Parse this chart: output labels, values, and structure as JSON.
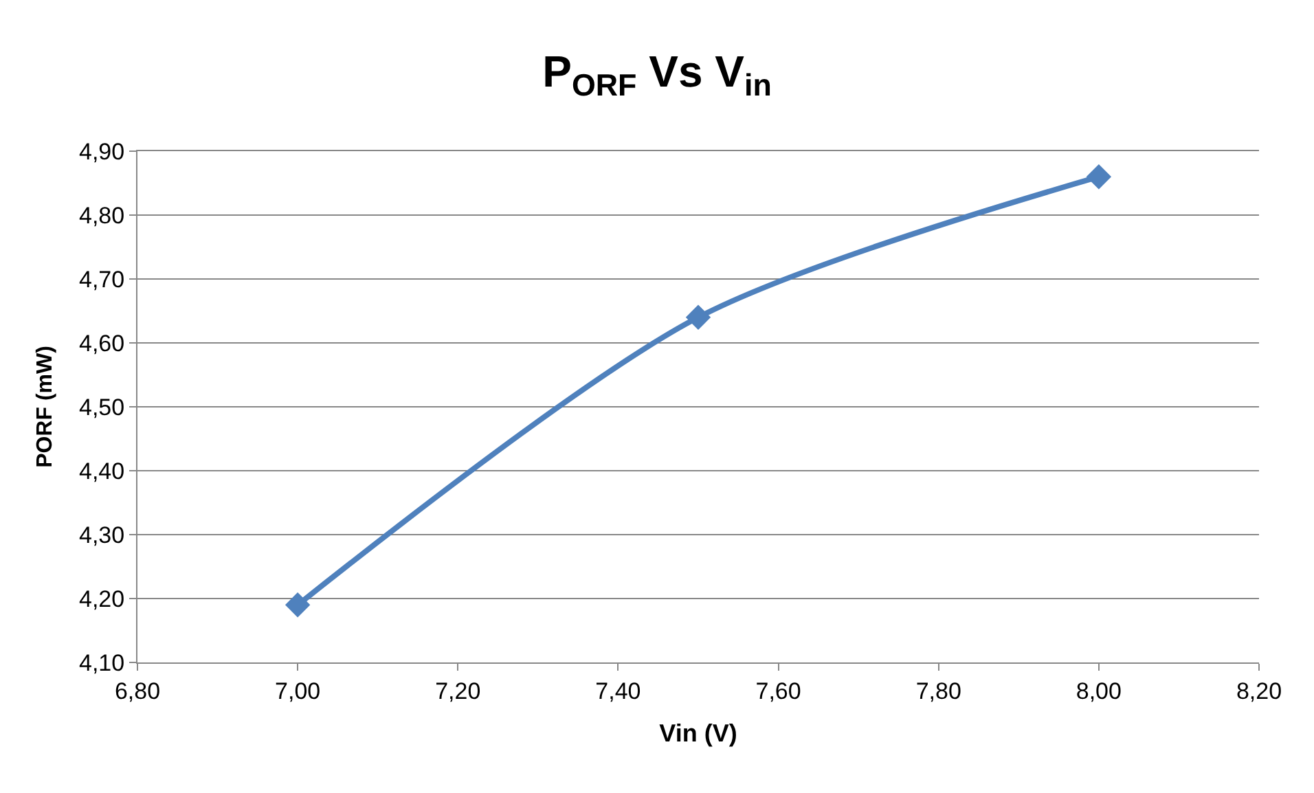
{
  "chart_data": {
    "type": "line",
    "title": "P$_{ORF}$ Vs V$_{in}$",
    "xlabel": "Vin (V)",
    "ylabel": "PORF (mW)",
    "x": [
      7.0,
      7.5,
      8.0
    ],
    "series": [
      {
        "color": "#4f81bd",
        "values": [
          4.19,
          4.64,
          4.86
        ]
      }
    ],
    "xlim": [
      6.8,
      8.2
    ],
    "xticks": [
      {
        "value": 6.8,
        "label": "6,80"
      },
      {
        "value": 7.0,
        "label": "7,00"
      },
      {
        "value": 7.2,
        "label": "7,20"
      },
      {
        "value": 7.4,
        "label": "7,40"
      },
      {
        "value": 7.6,
        "label": "7,60"
      },
      {
        "value": 7.8,
        "label": "7,80"
      },
      {
        "value": 8.0,
        "label": "8,00"
      },
      {
        "value": 8.2,
        "label": "8,20"
      }
    ],
    "ylim": [
      4.1,
      4.9
    ],
    "yticks": [
      {
        "value": 4.1,
        "label": "4,10"
      },
      {
        "value": 4.2,
        "label": "4,20"
      },
      {
        "value": 4.3,
        "label": "4,30"
      },
      {
        "value": 4.4,
        "label": "4,40"
      },
      {
        "value": 4.5,
        "label": "4,50"
      },
      {
        "value": 4.6,
        "label": "4,60"
      },
      {
        "value": 4.7,
        "label": "4,70"
      },
      {
        "value": 4.8,
        "label": "4,80"
      },
      {
        "value": 4.9,
        "label": "4,90"
      }
    ],
    "grid": "y",
    "marker": "diamond",
    "line_style": "solid"
  }
}
